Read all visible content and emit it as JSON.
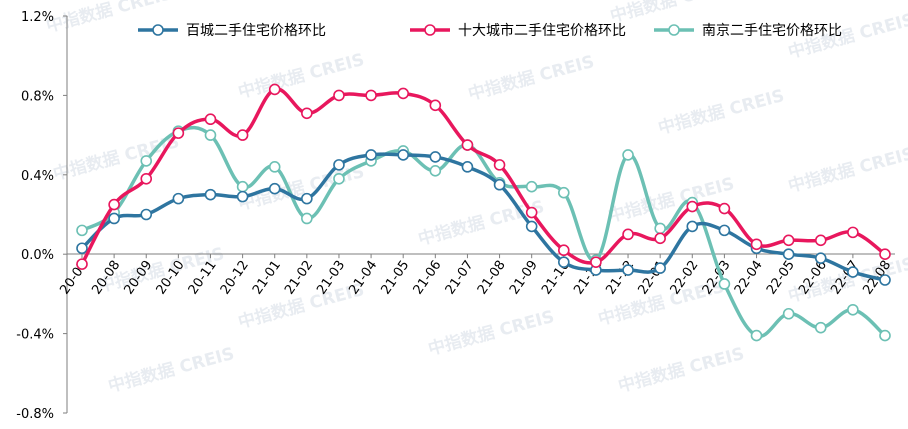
{
  "chart_data": {
    "type": "line",
    "title": "",
    "xlabel": "",
    "ylabel": "",
    "ylim": [
      -0.8,
      1.2
    ],
    "yticks": [
      "1.2%",
      "0.8%",
      "0.4%",
      "0.0%",
      "-0.4%",
      "-0.8%"
    ],
    "ytick_values": [
      1.2,
      0.8,
      0.4,
      0.0,
      -0.4,
      -0.8
    ],
    "categories": [
      "20-07",
      "20-08",
      "20-09",
      "20-10",
      "20-11",
      "20-12",
      "21-01",
      "21-02",
      "21-03",
      "21-04",
      "21-05",
      "21-06",
      "21-07",
      "21-08",
      "21-09",
      "21-10",
      "21-11",
      "21-12",
      "22-01",
      "22-02",
      "22-03",
      "22-04",
      "22-05",
      "22-06",
      "22-07",
      "22-08"
    ],
    "legend_position": "top",
    "grid": false,
    "series": [
      {
        "name": "百城二手住宅价格环比",
        "color": "#2e75a0",
        "values": [
          0.03,
          0.18,
          0.2,
          0.28,
          0.3,
          0.29,
          0.33,
          0.28,
          0.45,
          0.5,
          0.5,
          0.49,
          0.44,
          0.35,
          0.14,
          -0.04,
          -0.08,
          -0.08,
          -0.07,
          0.14,
          0.12,
          0.03,
          0.0,
          -0.02,
          -0.09,
          -0.13
        ]
      },
      {
        "name": "十大城市二手住宅价格环比",
        "color": "#e8175d",
        "values": [
          -0.05,
          0.25,
          0.38,
          0.61,
          0.68,
          0.6,
          0.83,
          0.71,
          0.8,
          0.8,
          0.81,
          0.75,
          0.55,
          0.45,
          0.21,
          0.02,
          -0.04,
          0.1,
          0.08,
          0.24,
          0.23,
          0.05,
          0.07,
          0.07,
          0.11,
          0.0
        ]
      },
      {
        "name": "南京二手住宅价格环比",
        "color": "#6cc0b4",
        "values": [
          0.12,
          0.21,
          0.47,
          0.62,
          0.6,
          0.34,
          0.44,
          0.18,
          0.38,
          0.47,
          0.52,
          0.42,
          0.55,
          0.36,
          0.34,
          0.31,
          -0.03,
          0.5,
          0.13,
          0.26,
          -0.15,
          -0.41,
          -0.3,
          -0.37,
          -0.28,
          -0.41
        ]
      }
    ]
  },
  "watermark": "中指数据 CREIS"
}
